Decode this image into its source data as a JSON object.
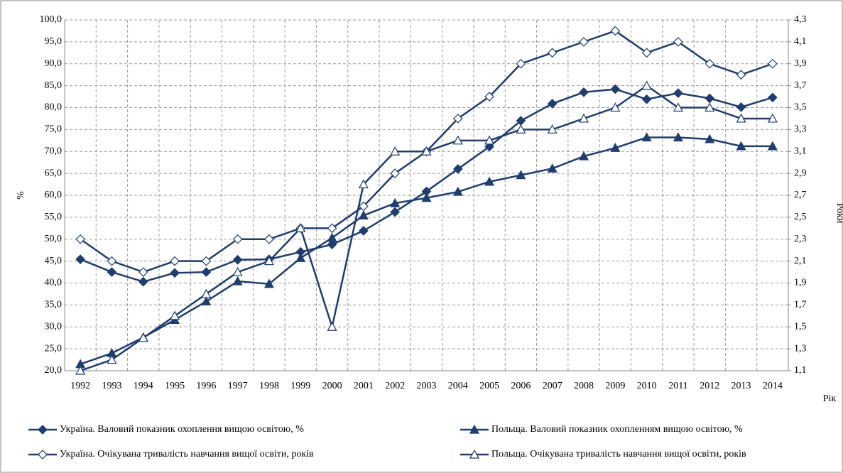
{
  "chart_data": {
    "type": "line",
    "categories": [
      "1992",
      "1993",
      "1994",
      "1995",
      "1996",
      "1997",
      "1998",
      "1999",
      "2000",
      "2001",
      "2002",
      "2003",
      "2004",
      "2005",
      "2006",
      "2007",
      "2008",
      "2009",
      "2010",
      "2011",
      "2012",
      "2013",
      "2014"
    ],
    "x_label": "Рік",
    "y_label": "%",
    "y2_label": "Роки",
    "ylim": [
      20,
      100
    ],
    "yticks": [
      {
        "value": 20,
        "label": "20,0"
      },
      {
        "value": 25,
        "label": "25,0"
      },
      {
        "value": 30,
        "label": "30,0"
      },
      {
        "value": 35,
        "label": "35,0"
      },
      {
        "value": 40,
        "label": "40,0"
      },
      {
        "value": 45,
        "label": "45,0"
      },
      {
        "value": 50,
        "label": "50,0"
      },
      {
        "value": 55,
        "label": "55,0"
      },
      {
        "value": 60,
        "label": "60,0"
      },
      {
        "value": 65,
        "label": "65,0"
      },
      {
        "value": 70,
        "label": "70,0"
      },
      {
        "value": 75,
        "label": "75,0"
      },
      {
        "value": 80,
        "label": "80,0"
      },
      {
        "value": 85,
        "label": "85,0"
      },
      {
        "value": 90,
        "label": "90,0"
      },
      {
        "value": 95,
        "label": "95,0"
      },
      {
        "value": 100,
        "label": "100,0"
      }
    ],
    "y2lim": [
      1.1,
      4.3
    ],
    "y2ticks": [
      {
        "value": 1.1,
        "label": "1,1"
      },
      {
        "value": 1.3,
        "label": "1,3"
      },
      {
        "value": 1.5,
        "label": "1,5"
      },
      {
        "value": 1.7,
        "label": "1,7"
      },
      {
        "value": 1.9,
        "label": "1,9"
      },
      {
        "value": 2.1,
        "label": "2,1"
      },
      {
        "value": 2.3,
        "label": "2,3"
      },
      {
        "value": 2.5,
        "label": "2,5"
      },
      {
        "value": 2.7,
        "label": "2,7"
      },
      {
        "value": 2.9,
        "label": "2,9"
      },
      {
        "value": 3.1,
        "label": "3,1"
      },
      {
        "value": 3.3,
        "label": "3,3"
      },
      {
        "value": 3.5,
        "label": "3,5"
      },
      {
        "value": 3.7,
        "label": "3,7"
      },
      {
        "value": 3.9,
        "label": "3,9"
      },
      {
        "value": 4.1,
        "label": "4,1"
      },
      {
        "value": 4.3,
        "label": "4,3"
      }
    ],
    "grid": true,
    "series": [
      {
        "name": "Україна. Валовий показник охоплення вищою освітою, %",
        "color": "#1f3d6e",
        "marker": "diamond",
        "marker_filled": true,
        "values": [
          45.4,
          42.5,
          40.3,
          42.3,
          42.5,
          45.3,
          45.4,
          47.1,
          48.8,
          51.9,
          56.2,
          60.9,
          66.0,
          71.1,
          77.0,
          80.9,
          83.5,
          84.2,
          81.9,
          83.3,
          82.1,
          80.1,
          82.3
        ]
      },
      {
        "name": "Польща. Валовий показник охопленням вищою освітою, %",
        "color": "#1f3d6e",
        "marker": "triangle",
        "marker_filled": true,
        "values": [
          21.5,
          24.0,
          27.6,
          31.6,
          35.8,
          40.4,
          39.8,
          45.7,
          50.3,
          55.4,
          58.2,
          59.4,
          60.8,
          63.1,
          64.6,
          66.1,
          68.9,
          70.8,
          73.2,
          73.2,
          72.8,
          71.2,
          71.2
        ]
      },
      {
        "name": "Україна. Очікувана тривалість навчання вищої освіти, років",
        "color": "#1f3d6e",
        "marker": "diamond",
        "marker_filled": false,
        "axis": "y2",
        "values": [
          2.3,
          2.1,
          2.0,
          2.1,
          2.1,
          2.3,
          2.3,
          2.4,
          2.4,
          2.6,
          2.9,
          3.1,
          3.4,
          3.6,
          3.9,
          4.0,
          4.1,
          4.2,
          4.0,
          4.1,
          3.9,
          3.8,
          3.9
        ]
      },
      {
        "name": "Польща. Очікувана тривалість навчання вищої освіти, років",
        "color": "#1f3d6e",
        "marker": "triangle",
        "marker_filled": false,
        "axis": "y2",
        "values": [
          1.1,
          1.2,
          1.4,
          1.6,
          1.8,
          2.0,
          2.1,
          2.4,
          1.5,
          2.8,
          3.1,
          3.1,
          3.2,
          3.2,
          3.3,
          3.3,
          3.4,
          3.5,
          3.7,
          3.5,
          3.5,
          3.4,
          3.4
        ]
      }
    ]
  }
}
